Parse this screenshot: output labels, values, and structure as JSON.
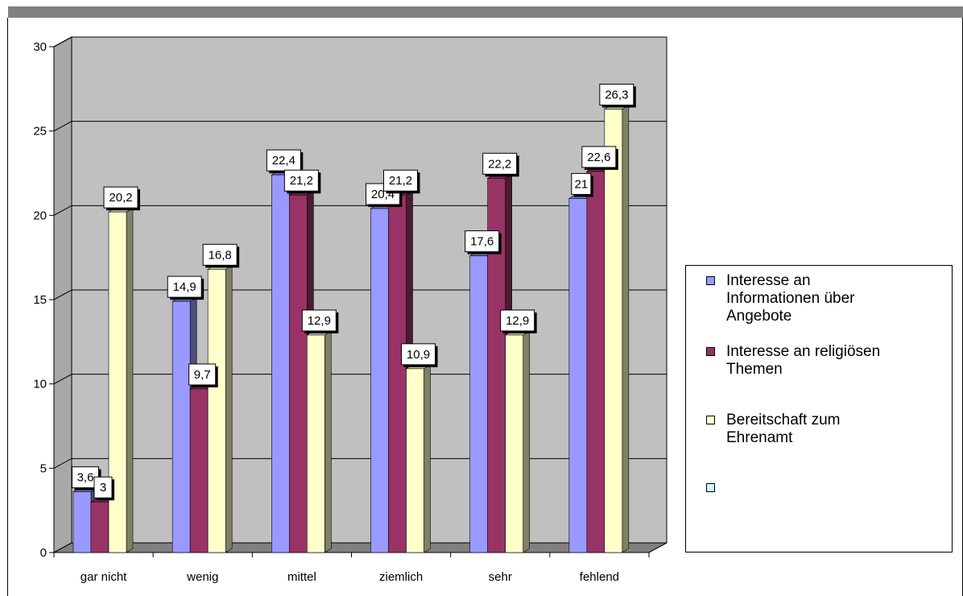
{
  "chart_data": {
    "type": "bar",
    "categories": [
      "gar nicht",
      "wenig",
      "mittel",
      "ziemlich",
      "sehr",
      "fehlend"
    ],
    "series": [
      {
        "name": "Interesse an Informationen über Angebote",
        "values": [
          3.6,
          14.9,
          22.4,
          20.4,
          17.6,
          21
        ],
        "labels": [
          "3,6",
          "14,9",
          "22,4",
          "20,4",
          "17,6",
          "21"
        ],
        "color": "#9999FF"
      },
      {
        "name": "Interesse an religiösen Themen",
        "values": [
          3,
          9.7,
          21.2,
          21.2,
          22.2,
          22.6
        ],
        "labels": [
          "3",
          "9,7",
          "21,2",
          "21,2",
          "22,2",
          "22,6"
        ],
        "color": "#993366"
      },
      {
        "name": "Bereitschaft zum Ehrenamt",
        "values": [
          20.2,
          16.8,
          12.9,
          10.9,
          12.9,
          26.3
        ],
        "labels": [
          "20,2",
          "16,8",
          "12,9",
          "10,9",
          "12,9",
          "26,3"
        ],
        "color": "#FFFFCC"
      }
    ],
    "extra_legend_color": "#CCFFFF",
    "ylim": [
      0,
      30
    ],
    "yticks": [
      0,
      5,
      10,
      15,
      20,
      25,
      30
    ],
    "grid": true,
    "wall_color": "#C0C0C0",
    "floor_color": "#808080",
    "legend_placement": "right"
  },
  "legend": {
    "items": [
      {
        "lines": [
          "Interesse an",
          "Informationen über",
          "Angebote"
        ],
        "color": "#9999FF"
      },
      {
        "lines": [
          "Interesse an religiösen",
          "Themen"
        ],
        "color": "#993366"
      },
      {
        "lines": [
          "Bereitschaft zum",
          "Ehrenamt"
        ],
        "color": "#FFFFCC"
      },
      {
        "lines": [
          ""
        ],
        "color": "#CCFFFF"
      }
    ]
  }
}
